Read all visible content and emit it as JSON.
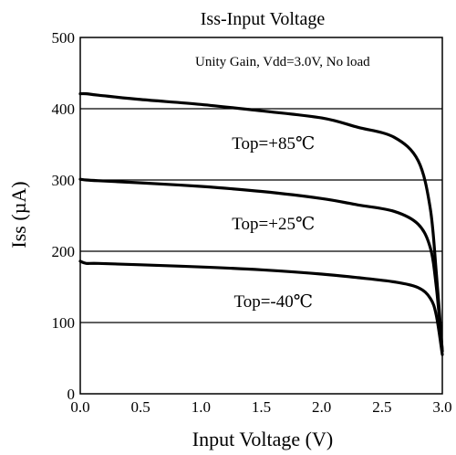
{
  "chart_data": {
    "type": "line",
    "title": "Iss-Input Voltage",
    "xlabel": "Input Voltage (V)",
    "ylabel": "Iss (µA)",
    "annotation": "Unity Gain, Vdd=3.0V, No load",
    "xlim": [
      0.0,
      3.0
    ],
    "ylim": [
      0,
      500
    ],
    "xticks": [
      "0.0",
      "0.5",
      "1.0",
      "1.5",
      "2.0",
      "2.5",
      "3.0"
    ],
    "yticks": [
      "0",
      "100",
      "200",
      "300",
      "400",
      "500"
    ],
    "grid": true,
    "series": [
      {
        "name": "Top=+85℃",
        "x": [
          0.0,
          0.05,
          0.15,
          0.5,
          1.0,
          1.5,
          2.0,
          2.3,
          2.6,
          2.8,
          2.9,
          2.95,
          3.0
        ],
        "y": [
          421,
          421,
          419,
          413,
          406,
          397,
          387,
          374,
          360,
          327,
          260,
          170,
          60
        ]
      },
      {
        "name": "Top=+25℃",
        "x": [
          0.0,
          0.05,
          0.15,
          0.5,
          1.0,
          1.5,
          2.0,
          2.3,
          2.6,
          2.8,
          2.9,
          2.95,
          3.0
        ],
        "y": [
          301,
          300,
          299,
          296,
          291,
          284,
          274,
          265,
          256,
          238,
          205,
          150,
          60
        ]
      },
      {
        "name": "Top=-40℃",
        "x": [
          0.0,
          0.05,
          0.15,
          0.5,
          1.0,
          1.5,
          2.0,
          2.3,
          2.6,
          2.8,
          2.9,
          2.95,
          3.0
        ],
        "y": [
          186,
          183,
          183,
          181,
          178,
          174,
          168,
          163,
          157,
          149,
          134,
          110,
          55
        ]
      }
    ]
  }
}
